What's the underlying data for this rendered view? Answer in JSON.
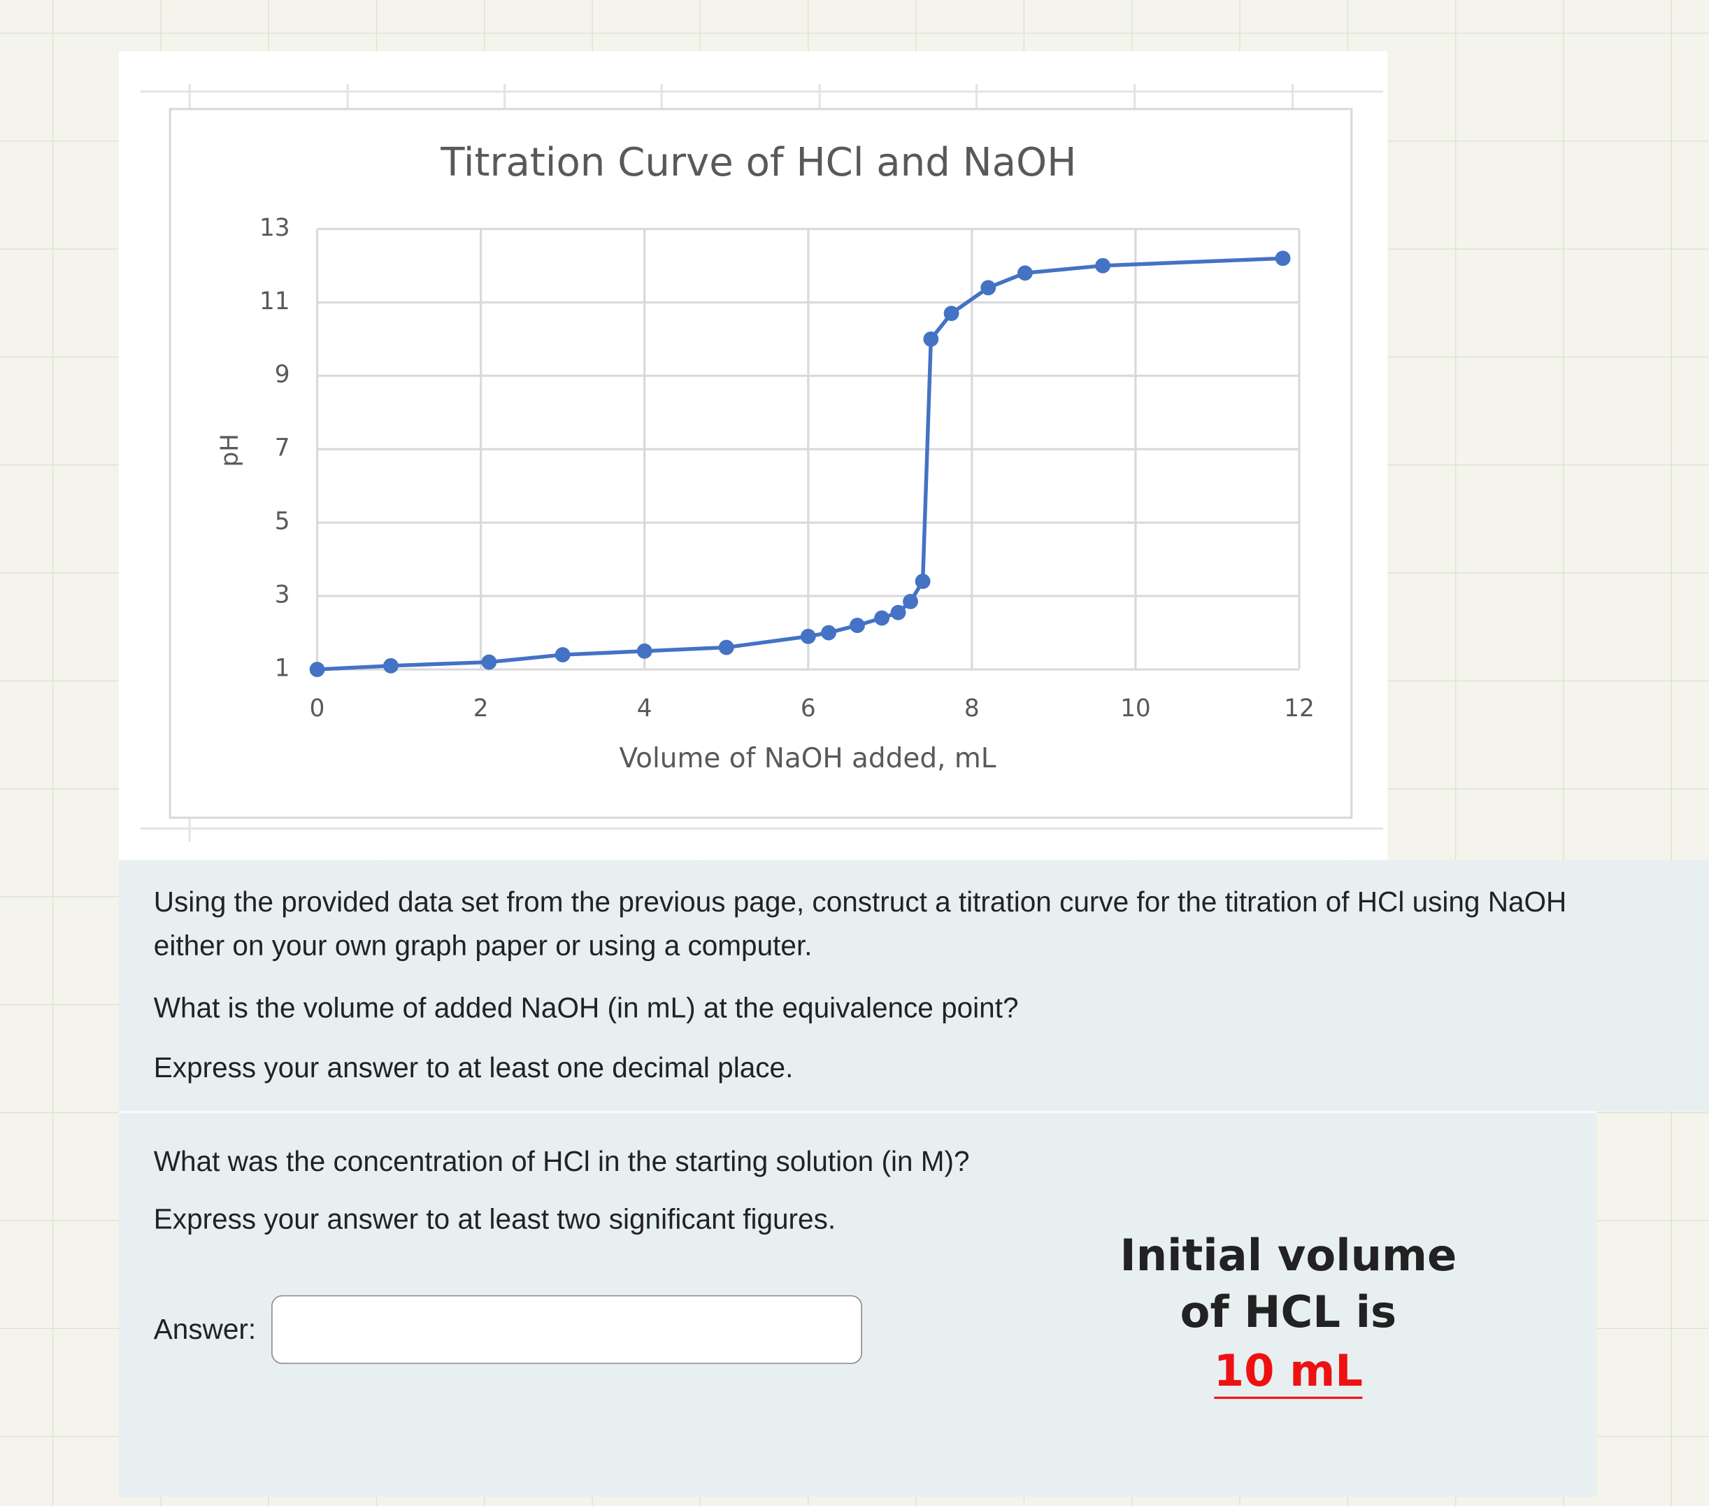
{
  "chart_data": {
    "type": "line",
    "title": "Titration Curve of HCl and NaOH",
    "x_label": "Volume of NaOH added, mL",
    "y_label": "pH",
    "x": [
      0,
      0.9,
      2.1,
      3,
      4,
      5,
      6,
      6.25,
      6.6,
      6.9,
      7.1,
      7.25,
      7.4,
      7.5,
      7.75,
      8.2,
      8.65,
      9.6,
      11.8
    ],
    "values": [
      1.0,
      1.1,
      1.2,
      1.4,
      1.5,
      1.6,
      1.9,
      2.0,
      2.2,
      2.4,
      2.55,
      2.85,
      3.4,
      10.0,
      10.7,
      11.4,
      11.8,
      12.0,
      12.2
    ],
    "color": "#4472c4",
    "markers": true,
    "grid": true,
    "xlim": [
      0,
      12
    ],
    "xticks": [
      0,
      2,
      4,
      6,
      8,
      10,
      12
    ],
    "ylim": [
      1,
      13
    ],
    "yticks": [
      1,
      3,
      5,
      7,
      9,
      11,
      13
    ]
  },
  "question": {
    "intro": "Using the provided data set from the previous page, construct a titration curve for the titration of HCl using NaOH either on your own graph paper or using a computer.",
    "part1": {
      "prompt": "What is the volume of added NaOH (in mL) at the equivalence point?",
      "instruction": "Express your answer to at least one decimal place."
    },
    "part2": {
      "prompt": "What was the concentration of HCl in the starting solution (in M)?",
      "instruction": "Express your answer to at least two significant figures.",
      "answer_label": "Answer:"
    }
  },
  "annotation": {
    "lines": [
      "Initial volume",
      "of HCL is"
    ],
    "highlight": "10 mL"
  }
}
